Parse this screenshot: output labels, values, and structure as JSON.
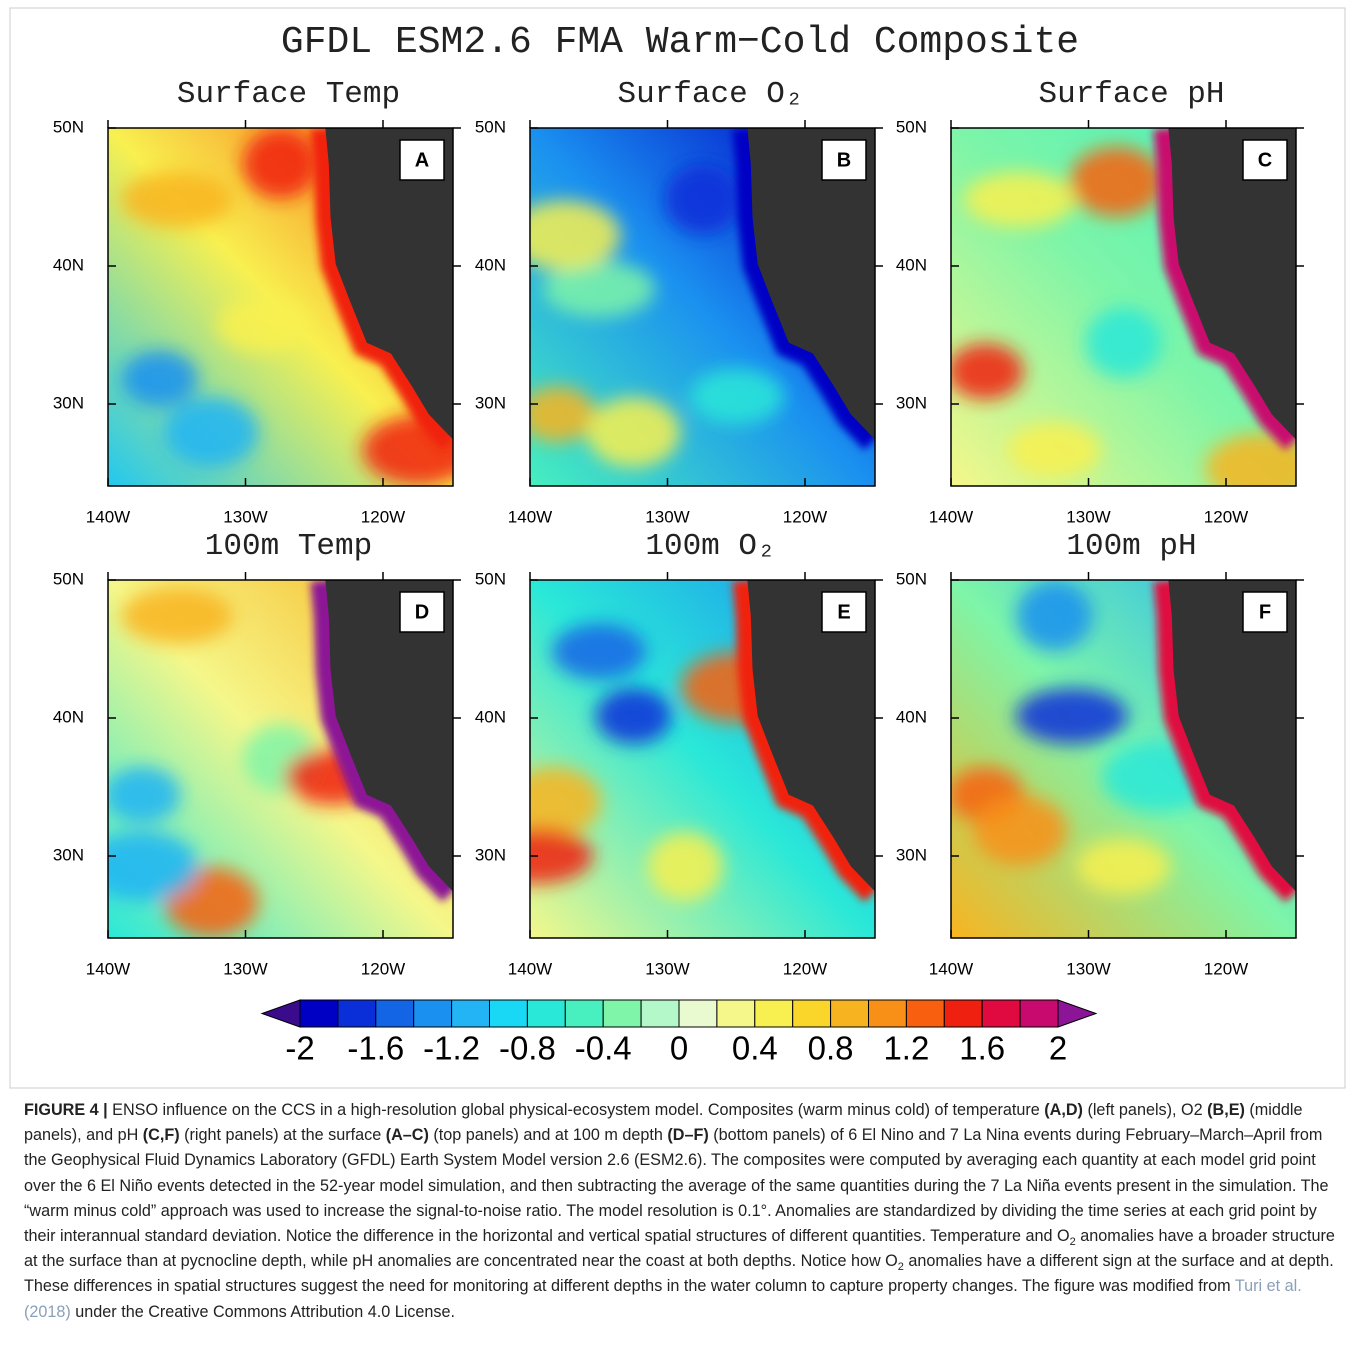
{
  "figure": {
    "title": "GFDL ESM2.6 FMA Warm−Cold Composite",
    "panels": [
      {
        "title": "Surface Temp",
        "letter": "A"
      },
      {
        "title": "Surface O₂",
        "letter": "B"
      },
      {
        "title": "Surface pH",
        "letter": "C"
      },
      {
        "title": "100m Temp",
        "letter": "D"
      },
      {
        "title": "100m O₂",
        "letter": "E"
      },
      {
        "title": "100m pH",
        "letter": "F"
      }
    ],
    "lat_labels": [
      "50N",
      "40N",
      "30N"
    ],
    "lon_labels": [
      "140W",
      "130W",
      "120W"
    ],
    "colorbar": {
      "ticks": [
        -2,
        -1.6,
        -1.2,
        -0.8,
        -0.4,
        0,
        0.4,
        0.8,
        1.2,
        1.6,
        2
      ],
      "low_color": "#3a0c8c",
      "high_color": "#8c1496",
      "colors": [
        "#0000c4",
        "#0a2fd9",
        "#1464e6",
        "#1a90f0",
        "#22b4f5",
        "#19d8f5",
        "#2ae8d8",
        "#47f0be",
        "#7ef5a8",
        "#b4f7c8",
        "#eafad0",
        "#f5f78a",
        "#f8f050",
        "#fad52a",
        "#f8b420",
        "#f89018",
        "#f86010",
        "#f02010",
        "#e00a40",
        "#c80a6e"
      ]
    }
  },
  "caption": [
    {
      "b": "FIGURE 4 |"
    },
    {
      "t": " ENSO influence on the CCS in a high-resolution global physical-ecosystem model. Composites (warm minus cold) of temperature "
    },
    {
      "b": "(A,D)"
    },
    {
      "t": " (left panels), O2 "
    },
    {
      "b": "(B,E)"
    },
    {
      "t": " (middle panels), and pH "
    },
    {
      "b": "(C,F)"
    },
    {
      "t": " (right panels) at the surface "
    },
    {
      "b": "(A–C)"
    },
    {
      "t": " (top panels) and at 100 m depth "
    },
    {
      "b": "(D–F)"
    },
    {
      "t": " (bottom panels) of 6 El Nino and 7 La Nina events during February–March–April from the Geophysical Fluid Dynamics Laboratory (GFDL) Earth System Model version 2.6 (ESM2.6). The composites were computed by averaging each quantity at each model grid point over the 6 El Niño events detected in the 52-year model simulation, and then subtracting the average of the same quantities during the 7 La Niña events present in the simulation. The “warm minus cold” approach was used to increase the signal-to-noise ratio. The model resolution is 0.1°. Anomalies are standardized by dividing the time series at each grid point by their interannual standard deviation. Notice the difference in the horizontal and vertical spatial structures of different quantities. Temperature and O"
    },
    {
      "sub": "2"
    },
    {
      "t": " anomalies have a broader structure at the surface than at pycnocline depth, while pH anomalies are concentrated near the coast at both depths. Notice how O"
    },
    {
      "sub": "2"
    },
    {
      "t": " anomalies have a different sign at the surface and at depth. These differences in spatial structures suggest the need for monitoring at different depths in the water column to capture property changes. The figure was modified from "
    },
    {
      "link": "Turi et al. (2018)"
    },
    {
      "t": " under the Creative Commons Attribution 4.0 License."
    }
  ]
}
